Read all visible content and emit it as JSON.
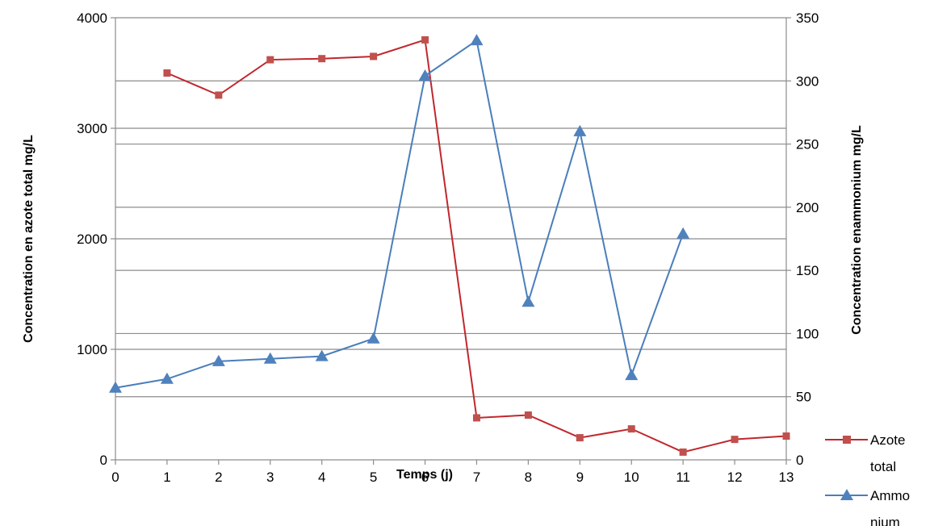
{
  "chart_data": {
    "type": "line",
    "title": "",
    "xlabel": "Temps (j)",
    "ylabel": "Concentration en azote total mg/L",
    "y2label": "Concentration enammonium  mg/L",
    "x": [
      0,
      1,
      2,
      3,
      4,
      5,
      6,
      7,
      8,
      9,
      10,
      11,
      12,
      13
    ],
    "xlim": [
      0,
      13
    ],
    "ylim": [
      0,
      4000
    ],
    "y2lim": [
      0,
      350
    ],
    "yticks": [
      0,
      1000,
      2000,
      3000,
      4000
    ],
    "y2ticks": [
      0,
      50,
      100,
      150,
      200,
      250,
      300,
      350
    ],
    "grid": true,
    "legend_position": "right",
    "series": [
      {
        "name": "Azote total",
        "axis": "left",
        "color": "#C0272D",
        "marker": "square",
        "x": [
          1,
          2,
          3,
          4,
          5,
          6,
          7,
          8,
          9,
          10,
          11,
          12,
          13
        ],
        "values": [
          3500,
          3300,
          3620,
          3630,
          3650,
          3800,
          380,
          405,
          200,
          280,
          70,
          185,
          215
        ]
      },
      {
        "name": "Ammonium",
        "axis": "right",
        "color": "#4A7EBB",
        "marker": "triangle",
        "x": [
          0,
          1,
          2,
          3,
          4,
          5,
          6,
          7,
          8,
          9,
          10,
          11
        ],
        "values": [
          57,
          64,
          78,
          80,
          82,
          96,
          304,
          332,
          125,
          260,
          67,
          179
        ]
      }
    ],
    "legend": [
      {
        "lines": [
          "Azote",
          "total"
        ]
      },
      {
        "lines": [
          "Ammo",
          "nium"
        ]
      }
    ]
  }
}
